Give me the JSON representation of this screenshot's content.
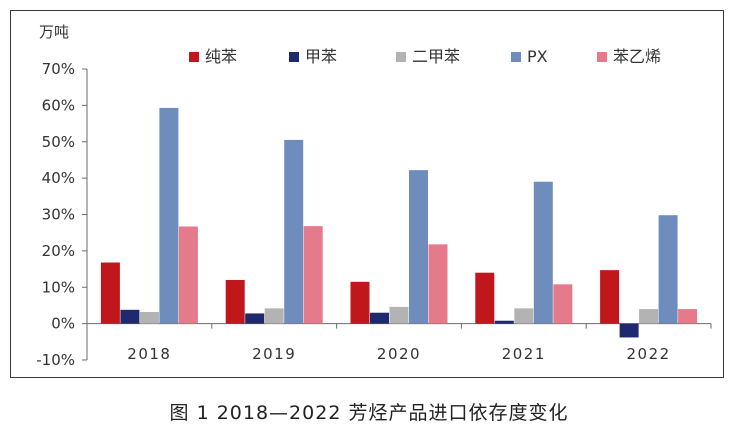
{
  "chart_data": {
    "type": "bar",
    "unit_label": "万吨",
    "categories": [
      "2018",
      "2019",
      "2020",
      "2021",
      "2022"
    ],
    "y_tick_labels": [
      "70%",
      "60%",
      "50%",
      "40%",
      "30%",
      "20%",
      "10%",
      "0%",
      "-10%"
    ],
    "ylim": [
      -10,
      70
    ],
    "legend_position": "top",
    "grid": false,
    "series": [
      {
        "name": "纯苯",
        "color": "#C0171C",
        "values": [
          16.8,
          12.0,
          11.5,
          14.0,
          14.7
        ]
      },
      {
        "name": "甲苯",
        "color": "#1F2A6E",
        "values": [
          3.8,
          2.8,
          3.0,
          0.8,
          -3.8
        ]
      },
      {
        "name": "二甲苯",
        "color": "#B3B3B3",
        "values": [
          3.2,
          4.2,
          4.6,
          4.2,
          4.0
        ]
      },
      {
        "name": "PX",
        "color": "#6E8DBC",
        "values": [
          59.3,
          50.5,
          42.2,
          39.0,
          29.8
        ]
      },
      {
        "name": "苯乙烯",
        "color": "#E57A8A",
        "values": [
          26.7,
          26.8,
          21.8,
          10.8,
          4.0
        ]
      }
    ]
  },
  "caption": "图 1  2018—2022 芳烃产品进口依存度变化"
}
